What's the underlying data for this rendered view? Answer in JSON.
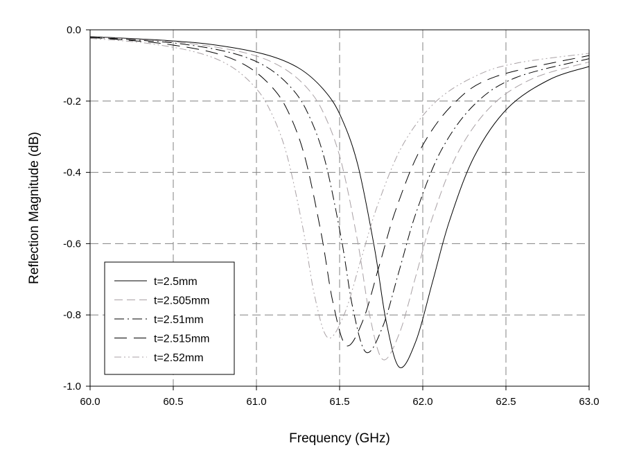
{
  "chart_data": {
    "type": "line",
    "title": "",
    "xlabel": "Frequency (GHz)",
    "ylabel": "Reflection Magnitude (dB)",
    "xlim": [
      60.0,
      63.0
    ],
    "ylim": [
      -1.0,
      0.0
    ],
    "xticks": [
      "60.0",
      "60.5",
      "61.0",
      "61.5",
      "62.0",
      "62.5",
      "63.0"
    ],
    "yticks": [
      "0.0",
      "-0.2",
      "-0.4",
      "-0.6",
      "-0.8",
      "-1.0"
    ],
    "grid": true,
    "legend_position": "bottom-left",
    "series": [
      {
        "name": "t=2.5mm",
        "color": "#000000",
        "dash": "solid",
        "x": [
          60.0,
          60.46,
          60.76,
          61.06,
          61.26,
          61.41,
          61.51,
          61.61,
          61.71,
          61.78,
          61.86,
          61.96,
          62.06,
          62.16,
          62.31,
          62.51,
          62.76,
          63.0
        ],
        "y": [
          -0.019,
          -0.03,
          -0.043,
          -0.07,
          -0.109,
          -0.171,
          -0.246,
          -0.38,
          -0.613,
          -0.818,
          -0.947,
          -0.872,
          -0.705,
          -0.537,
          -0.355,
          -0.22,
          -0.14,
          -0.103
        ]
      },
      {
        "name": "t=2.505mm",
        "color": "#a8a0a4",
        "dash": "dash",
        "x": [
          60.0,
          60.36,
          60.66,
          60.96,
          61.16,
          61.31,
          61.41,
          61.51,
          61.61,
          61.68,
          61.76,
          61.86,
          61.96,
          62.06,
          62.21,
          62.41,
          62.66,
          63.0
        ],
        "y": [
          -0.02,
          -0.029,
          -0.042,
          -0.068,
          -0.107,
          -0.166,
          -0.24,
          -0.371,
          -0.598,
          -0.799,
          -0.925,
          -0.851,
          -0.688,
          -0.524,
          -0.346,
          -0.215,
          -0.137,
          -0.09
        ]
      },
      {
        "name": "t=2.51mm",
        "color": "#000000",
        "dash": "dashdot",
        "x": [
          60.0,
          60.26,
          60.56,
          60.86,
          61.06,
          61.21,
          61.31,
          61.41,
          61.51,
          61.58,
          61.66,
          61.76,
          61.86,
          61.96,
          62.11,
          62.31,
          62.56,
          63.0
        ],
        "y": [
          -0.021,
          -0.028,
          -0.04,
          -0.066,
          -0.104,
          -0.163,
          -0.235,
          -0.363,
          -0.585,
          -0.782,
          -0.905,
          -0.832,
          -0.673,
          -0.513,
          -0.339,
          -0.21,
          -0.134,
          -0.081
        ]
      },
      {
        "name": "t=2.515mm",
        "color": "#000000",
        "dash": "longdash",
        "x": [
          60.0,
          60.14,
          60.44,
          60.74,
          60.94,
          61.09,
          61.19,
          61.29,
          61.39,
          61.46,
          61.54,
          61.64,
          61.74,
          61.84,
          61.99,
          62.19,
          62.44,
          63.0
        ],
        "y": [
          -0.022,
          -0.026,
          -0.039,
          -0.064,
          -0.101,
          -0.159,
          -0.229,
          -0.355,
          -0.573,
          -0.765,
          -0.886,
          -0.816,
          -0.659,
          -0.502,
          -0.332,
          -0.205,
          -0.131,
          -0.072
        ]
      },
      {
        "name": "t=2.52mm",
        "color": "#a8a0a4",
        "dash": "dashdotdot",
        "x": [
          60.0,
          60.33,
          60.63,
          60.83,
          60.98,
          61.08,
          61.18,
          61.28,
          61.35,
          61.43,
          61.53,
          61.63,
          61.73,
          61.88,
          62.08,
          62.33,
          62.58,
          63.0
        ],
        "y": [
          -0.024,
          -0.037,
          -0.062,
          -0.098,
          -0.155,
          -0.224,
          -0.346,
          -0.558,
          -0.747,
          -0.864,
          -0.796,
          -0.642,
          -0.49,
          -0.323,
          -0.201,
          -0.127,
          -0.092,
          -0.066
        ]
      }
    ]
  }
}
